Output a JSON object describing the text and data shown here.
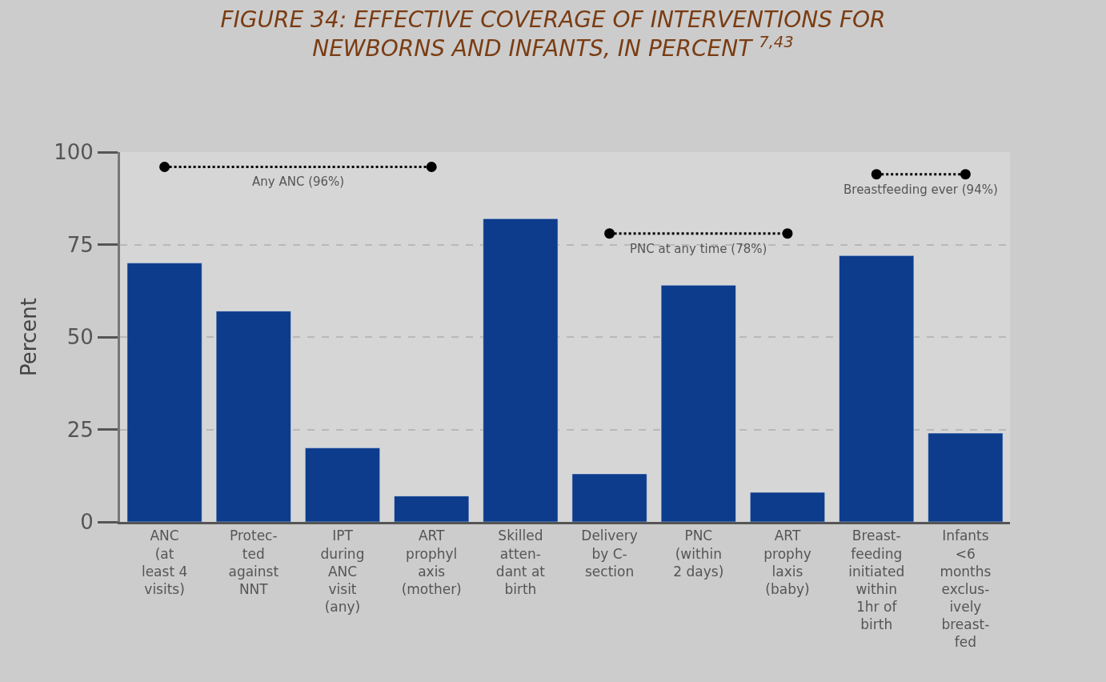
{
  "chart_data": {
    "type": "bar",
    "title": "FIGURE 34: EFFECTIVE COVERAGE OF INTERVENTIONS FOR\nNEWBORNS AND INFANTS, IN PERCENT $^{7,43}$",
    "ylabel": "Percent",
    "categories": [
      "ANC\n(at\nleast 4\nvisits)",
      "Protec-\nted\nagainst\nNNT",
      "IPT\nduring\nANC\nvisit\n(any)",
      "ART\nprophyl\naxis\n(mother)",
      "Skilled\natten-\ndant at\nbirth",
      "Delivery\nby C-\nsection",
      "PNC\n(within\n2 days)",
      "ART\nprophy\nlaxis\n(baby)",
      "Breast-\nfeeding\ninitiated\nwithin\n1hr of\nbirth",
      "Infants\n<6\nmonths\nexclus-\nively\nbreast-\nfed"
    ],
    "series": [
      {
        "color": "#0d3c8c",
        "values": [
          70,
          57,
          20,
          7,
          82,
          13,
          64,
          8,
          72,
          24
        ]
      },
      {
        "type": "line",
        "name": "Any ANC (96%)",
        "color": "#000000",
        "line_style": "dotted",
        "marker": "circle",
        "values": [
          96,
          null,
          null,
          96,
          null,
          null,
          null,
          null,
          null,
          null
        ]
      },
      {
        "type": "line",
        "name": "PNC at any time (78%)",
        "color": "#000000",
        "line_style": "dotted",
        "marker": "circle",
        "values": [
          null,
          null,
          null,
          null,
          null,
          78,
          null,
          78,
          null,
          null
        ]
      },
      {
        "type": "line",
        "name": "Breastfeeding ever (94%)",
        "color": "#000000",
        "line_style": "dotted",
        "marker": "circle",
        "values": [
          null,
          null,
          null,
          null,
          null,
          null,
          null,
          null,
          94,
          94
        ]
      }
    ],
    "ylim": [
      0,
      100
    ],
    "yticks": [
      0,
      25,
      50,
      75,
      100
    ],
    "grid": "y",
    "legend": false
  }
}
